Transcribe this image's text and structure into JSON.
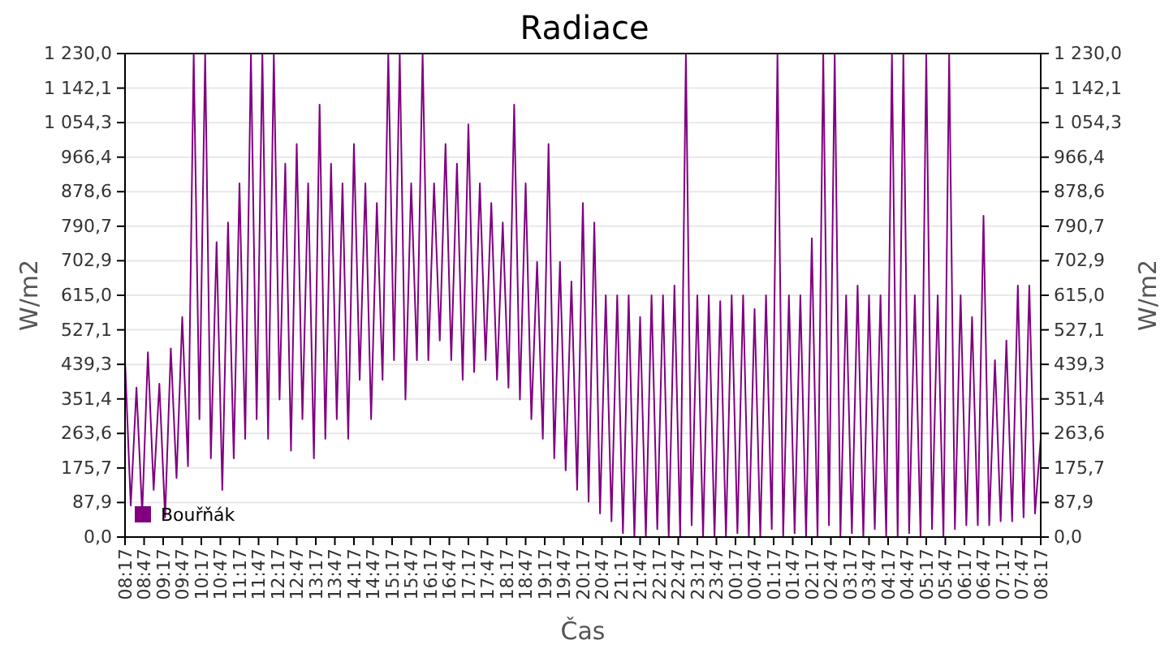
{
  "chart_data": {
    "type": "line",
    "title": "Radiace",
    "xlabel": "Čas",
    "ylabel": "W/m2",
    "y2label": "W/m2",
    "xlim": [
      "--01-01T08:17",
      "--01-02T08:17"
    ],
    "xticks": [
      {
        "value": "--01-01T08:17",
        "label": "08:17"
      },
      {
        "value": "--01-01T08:47",
        "label": "08:47"
      },
      {
        "value": "--01-01T09:17",
        "label": "09:17"
      },
      {
        "value": "--01-01T09:47",
        "label": "09:47"
      },
      {
        "value": "--01-01T10:17",
        "label": "10:17"
      },
      {
        "value": "--01-01T10:47",
        "label": "10:47"
      },
      {
        "value": "--01-01T11:17",
        "label": "11:17"
      },
      {
        "value": "--01-01T11:47",
        "label": "11:47"
      },
      {
        "value": "--01-01T12:17",
        "label": "12:17"
      },
      {
        "value": "--01-01T12:47",
        "label": "12:47"
      },
      {
        "value": "--01-01T13:17",
        "label": "13:17"
      },
      {
        "value": "--01-01T13:47",
        "label": "13:47"
      },
      {
        "value": "--01-01T14:17",
        "label": "14:17"
      },
      {
        "value": "--01-01T14:47",
        "label": "14:47"
      },
      {
        "value": "--01-01T15:17",
        "label": "15:17"
      },
      {
        "value": "--01-01T15:47",
        "label": "15:47"
      },
      {
        "value": "--01-01T16:17",
        "label": "16:17"
      },
      {
        "value": "--01-01T16:47",
        "label": "16:47"
      },
      {
        "value": "--01-01T17:17",
        "label": "17:17"
      },
      {
        "value": "--01-01T17:47",
        "label": "17:47"
      },
      {
        "value": "--01-01T18:17",
        "label": "18:17"
      },
      {
        "value": "--01-01T18:47",
        "label": "18:47"
      },
      {
        "value": "--01-01T19:17",
        "label": "19:17"
      },
      {
        "value": "--01-01T19:47",
        "label": "19:47"
      },
      {
        "value": "--01-01T20:17",
        "label": "20:17"
      },
      {
        "value": "--01-01T20:47",
        "label": "20:47"
      },
      {
        "value": "--01-01T21:17",
        "label": "21:17"
      },
      {
        "value": "--01-01T21:47",
        "label": "21:47"
      },
      {
        "value": "--01-01T22:17",
        "label": "22:17"
      },
      {
        "value": "--01-01T22:47",
        "label": "22:47"
      },
      {
        "value": "--01-01T23:17",
        "label": "23:17"
      },
      {
        "value": "--01-01T23:47",
        "label": "23:47"
      },
      {
        "value": "--01-02T00:17",
        "label": "00:17"
      },
      {
        "value": "--01-02T00:47",
        "label": "00:47"
      },
      {
        "value": "--01-02T01:17",
        "label": "01:17"
      },
      {
        "value": "--01-02T01:47",
        "label": "01:47"
      },
      {
        "value": "--01-02T02:17",
        "label": "02:17"
      },
      {
        "value": "--01-02T02:47",
        "label": "02:47"
      },
      {
        "value": "--01-02T03:17",
        "label": "03:17"
      },
      {
        "value": "--01-02T03:47",
        "label": "03:47"
      },
      {
        "value": "--01-02T04:17",
        "label": "04:17"
      },
      {
        "value": "--01-02T04:47",
        "label": "04:47"
      },
      {
        "value": "--01-02T05:17",
        "label": "05:17"
      },
      {
        "value": "--01-02T05:47",
        "label": "05:47"
      },
      {
        "value": "--01-02T06:17",
        "label": "06:17"
      },
      {
        "value": "--01-02T06:47",
        "label": "06:47"
      },
      {
        "value": "--01-02T07:17",
        "label": "07:17"
      },
      {
        "value": "--01-02T07:47",
        "label": "07:47"
      },
      {
        "value": "--01-02T08:17",
        "label": "08:17"
      }
    ],
    "ylim": [
      0,
      1230
    ],
    "yticks": [
      {
        "value": 0,
        "label": "0,0"
      },
      {
        "value": 87.9,
        "label": "87,9"
      },
      {
        "value": 175.7,
        "label": "175,7"
      },
      {
        "value": 263.6,
        "label": "263,6"
      },
      {
        "value": 351.4,
        "label": "351,4"
      },
      {
        "value": 439.3,
        "label": "439,3"
      },
      {
        "value": 527.1,
        "label": "527,1"
      },
      {
        "value": 615,
        "label": "615,0"
      },
      {
        "value": 702.9,
        "label": "702,9"
      },
      {
        "value": 790.7,
        "label": "790,7"
      },
      {
        "value": 878.6,
        "label": "878,6"
      },
      {
        "value": 966.4,
        "label": "966,4"
      },
      {
        "value": 1054.3,
        "label": "1 054,3"
      },
      {
        "value": 1142.1,
        "label": "1 142,1"
      },
      {
        "value": 1230,
        "label": "1 230,0"
      }
    ],
    "y2lim": [
      0,
      1230
    ],
    "y2ticks": [
      {
        "value": 0,
        "label": "0,0"
      },
      {
        "value": 87.9,
        "label": "87,9"
      },
      {
        "value": 175.7,
        "label": "175,7"
      },
      {
        "value": 263.6,
        "label": "263,6"
      },
      {
        "value": 351.4,
        "label": "351,4"
      },
      {
        "value": 439.3,
        "label": "439,3"
      },
      {
        "value": 527.1,
        "label": "527,1"
      },
      {
        "value": 615,
        "label": "615,0"
      },
      {
        "value": 702.9,
        "label": "702,9"
      },
      {
        "value": 790.7,
        "label": "790,7"
      },
      {
        "value": 878.6,
        "label": "878,6"
      },
      {
        "value": 966.4,
        "label": "966,4"
      },
      {
        "value": 1054.3,
        "label": "1 054,3"
      },
      {
        "value": 1142.1,
        "label": "1 142,1"
      },
      {
        "value": 1230,
        "label": "1 230,0"
      }
    ],
    "grid": "y",
    "legend": "bottom left",
    "marker": "none",
    "line_style": "solid",
    "series": [
      {
        "name": "Bouřňák",
        "color": "#800080",
        "x": [
          "--01-01T08:17",
          "--01-01T08:26",
          "--01-01T08:35",
          "--01-01T08:44",
          "--01-01T08:53",
          "--01-01T09:02",
          "--01-01T09:11",
          "--01-01T09:20",
          "--01-01T09:29",
          "--01-01T09:38",
          "--01-01T09:47",
          "--01-01T09:56",
          "--01-01T10:05",
          "--01-01T10:14",
          "--01-01T10:23",
          "--01-01T10:32",
          "--01-01T10:41",
          "--01-01T10:50",
          "--01-01T10:59",
          "--01-01T11:08",
          "--01-01T11:17",
          "--01-01T11:26",
          "--01-01T11:35",
          "--01-01T11:44",
          "--01-01T11:53",
          "--01-01T12:02",
          "--01-01T12:11",
          "--01-01T12:20",
          "--01-01T12:29",
          "--01-01T12:38",
          "--01-01T12:47",
          "--01-01T12:56",
          "--01-01T13:05",
          "--01-01T13:14",
          "--01-01T13:23",
          "--01-01T13:32",
          "--01-01T13:41",
          "--01-01T13:50",
          "--01-01T13:59",
          "--01-01T14:08",
          "--01-01T14:17",
          "--01-01T14:26",
          "--01-01T14:35",
          "--01-01T14:44",
          "--01-01T14:53",
          "--01-01T15:02",
          "--01-01T15:11",
          "--01-01T15:20",
          "--01-01T15:29",
          "--01-01T15:38",
          "--01-01T15:47",
          "--01-01T15:56",
          "--01-01T16:05",
          "--01-01T16:14",
          "--01-01T16:23",
          "--01-01T16:32",
          "--01-01T16:41",
          "--01-01T16:50",
          "--01-01T16:59",
          "--01-01T17:08",
          "--01-01T17:17",
          "--01-01T17:26",
          "--01-01T17:35",
          "--01-01T17:44",
          "--01-01T17:53",
          "--01-01T18:02",
          "--01-01T18:11",
          "--01-01T18:20",
          "--01-01T18:29",
          "--01-01T18:38",
          "--01-01T18:47",
          "--01-01T18:56",
          "--01-01T19:05",
          "--01-01T19:14",
          "--01-01T19:23",
          "--01-01T19:32",
          "--01-01T19:41",
          "--01-01T19:50",
          "--01-01T19:59",
          "--01-01T20:08",
          "--01-01T20:17",
          "--01-01T20:26",
          "--01-01T20:35",
          "--01-01T20:44",
          "--01-01T20:53",
          "--01-01T21:02",
          "--01-01T21:11",
          "--01-01T21:20",
          "--01-01T21:29",
          "--01-01T21:38",
          "--01-01T21:47",
          "--01-01T21:56",
          "--01-01T22:05",
          "--01-01T22:14",
          "--01-01T22:23",
          "--01-01T22:32",
          "--01-01T22:41",
          "--01-01T22:50",
          "--01-01T22:59",
          "--01-01T23:08",
          "--01-01T23:17",
          "--01-01T23:26",
          "--01-01T23:35",
          "--01-01T23:44",
          "--01-01T23:53",
          "--01-02T00:02",
          "--01-02T00:11",
          "--01-02T00:20",
          "--01-02T00:29",
          "--01-02T00:38",
          "--01-02T00:47",
          "--01-02T00:56",
          "--01-02T01:05",
          "--01-02T01:14",
          "--01-02T01:23",
          "--01-02T01:32",
          "--01-02T01:41",
          "--01-02T01:50",
          "--01-02T01:59",
          "--01-02T02:08",
          "--01-02T02:17",
          "--01-02T02:26",
          "--01-02T02:35",
          "--01-02T02:44",
          "--01-02T02:53",
          "--01-02T03:02",
          "--01-02T03:11",
          "--01-02T03:20",
          "--01-02T03:29",
          "--01-02T03:38",
          "--01-02T03:47",
          "--01-02T03:56",
          "--01-02T04:05",
          "--01-02T04:14",
          "--01-02T04:23",
          "--01-02T04:32",
          "--01-02T04:41",
          "--01-02T04:50",
          "--01-02T04:59",
          "--01-02T05:08",
          "--01-02T05:17",
          "--01-02T05:26",
          "--01-02T05:35",
          "--01-02T05:44",
          "--01-02T05:53",
          "--01-02T06:02",
          "--01-02T06:11",
          "--01-02T06:20",
          "--01-02T06:29",
          "--01-02T06:38",
          "--01-02T06:47",
          "--01-02T06:56",
          "--01-02T07:05",
          "--01-02T07:14",
          "--01-02T07:23",
          "--01-02T07:32",
          "--01-02T07:41",
          "--01-02T07:50",
          "--01-02T07:59",
          "--01-02T08:08",
          "--01-02T08:17"
        ],
        "values": [
          450,
          80,
          380,
          60,
          470,
          120,
          390,
          50,
          480,
          150,
          560,
          180,
          1230,
          300,
          1230,
          200,
          750,
          120,
          800,
          200,
          900,
          250,
          1230,
          300,
          1230,
          250,
          1230,
          350,
          950,
          220,
          1000,
          300,
          900,
          200,
          1100,
          250,
          950,
          300,
          900,
          250,
          1000,
          400,
          900,
          300,
          850,
          400,
          1230,
          450,
          1230,
          350,
          900,
          450,
          1230,
          450,
          900,
          500,
          1000,
          450,
          950,
          400,
          1050,
          420,
          900,
          450,
          850,
          400,
          800,
          380,
          1100,
          350,
          900,
          300,
          700,
          250,
          1000,
          200,
          700,
          170,
          650,
          120,
          850,
          90,
          800,
          60,
          615,
          40,
          615,
          10,
          615,
          0,
          560,
          0,
          615,
          20,
          615,
          0,
          640,
          0,
          1230,
          30,
          615,
          0,
          615,
          0,
          600,
          0,
          615,
          10,
          615,
          0,
          580,
          0,
          615,
          20,
          1230,
          0,
          615,
          10,
          615,
          0,
          760,
          0,
          1230,
          30,
          1230,
          0,
          615,
          10,
          640,
          0,
          615,
          20,
          615,
          0,
          1230,
          0,
          1230,
          10,
          615,
          0,
          1230,
          20,
          615,
          0,
          1230,
          20,
          615,
          30,
          560,
          30,
          817,
          30,
          450,
          40,
          500,
          40,
          640,
          50,
          640,
          60,
          250
        ]
      }
    ]
  }
}
